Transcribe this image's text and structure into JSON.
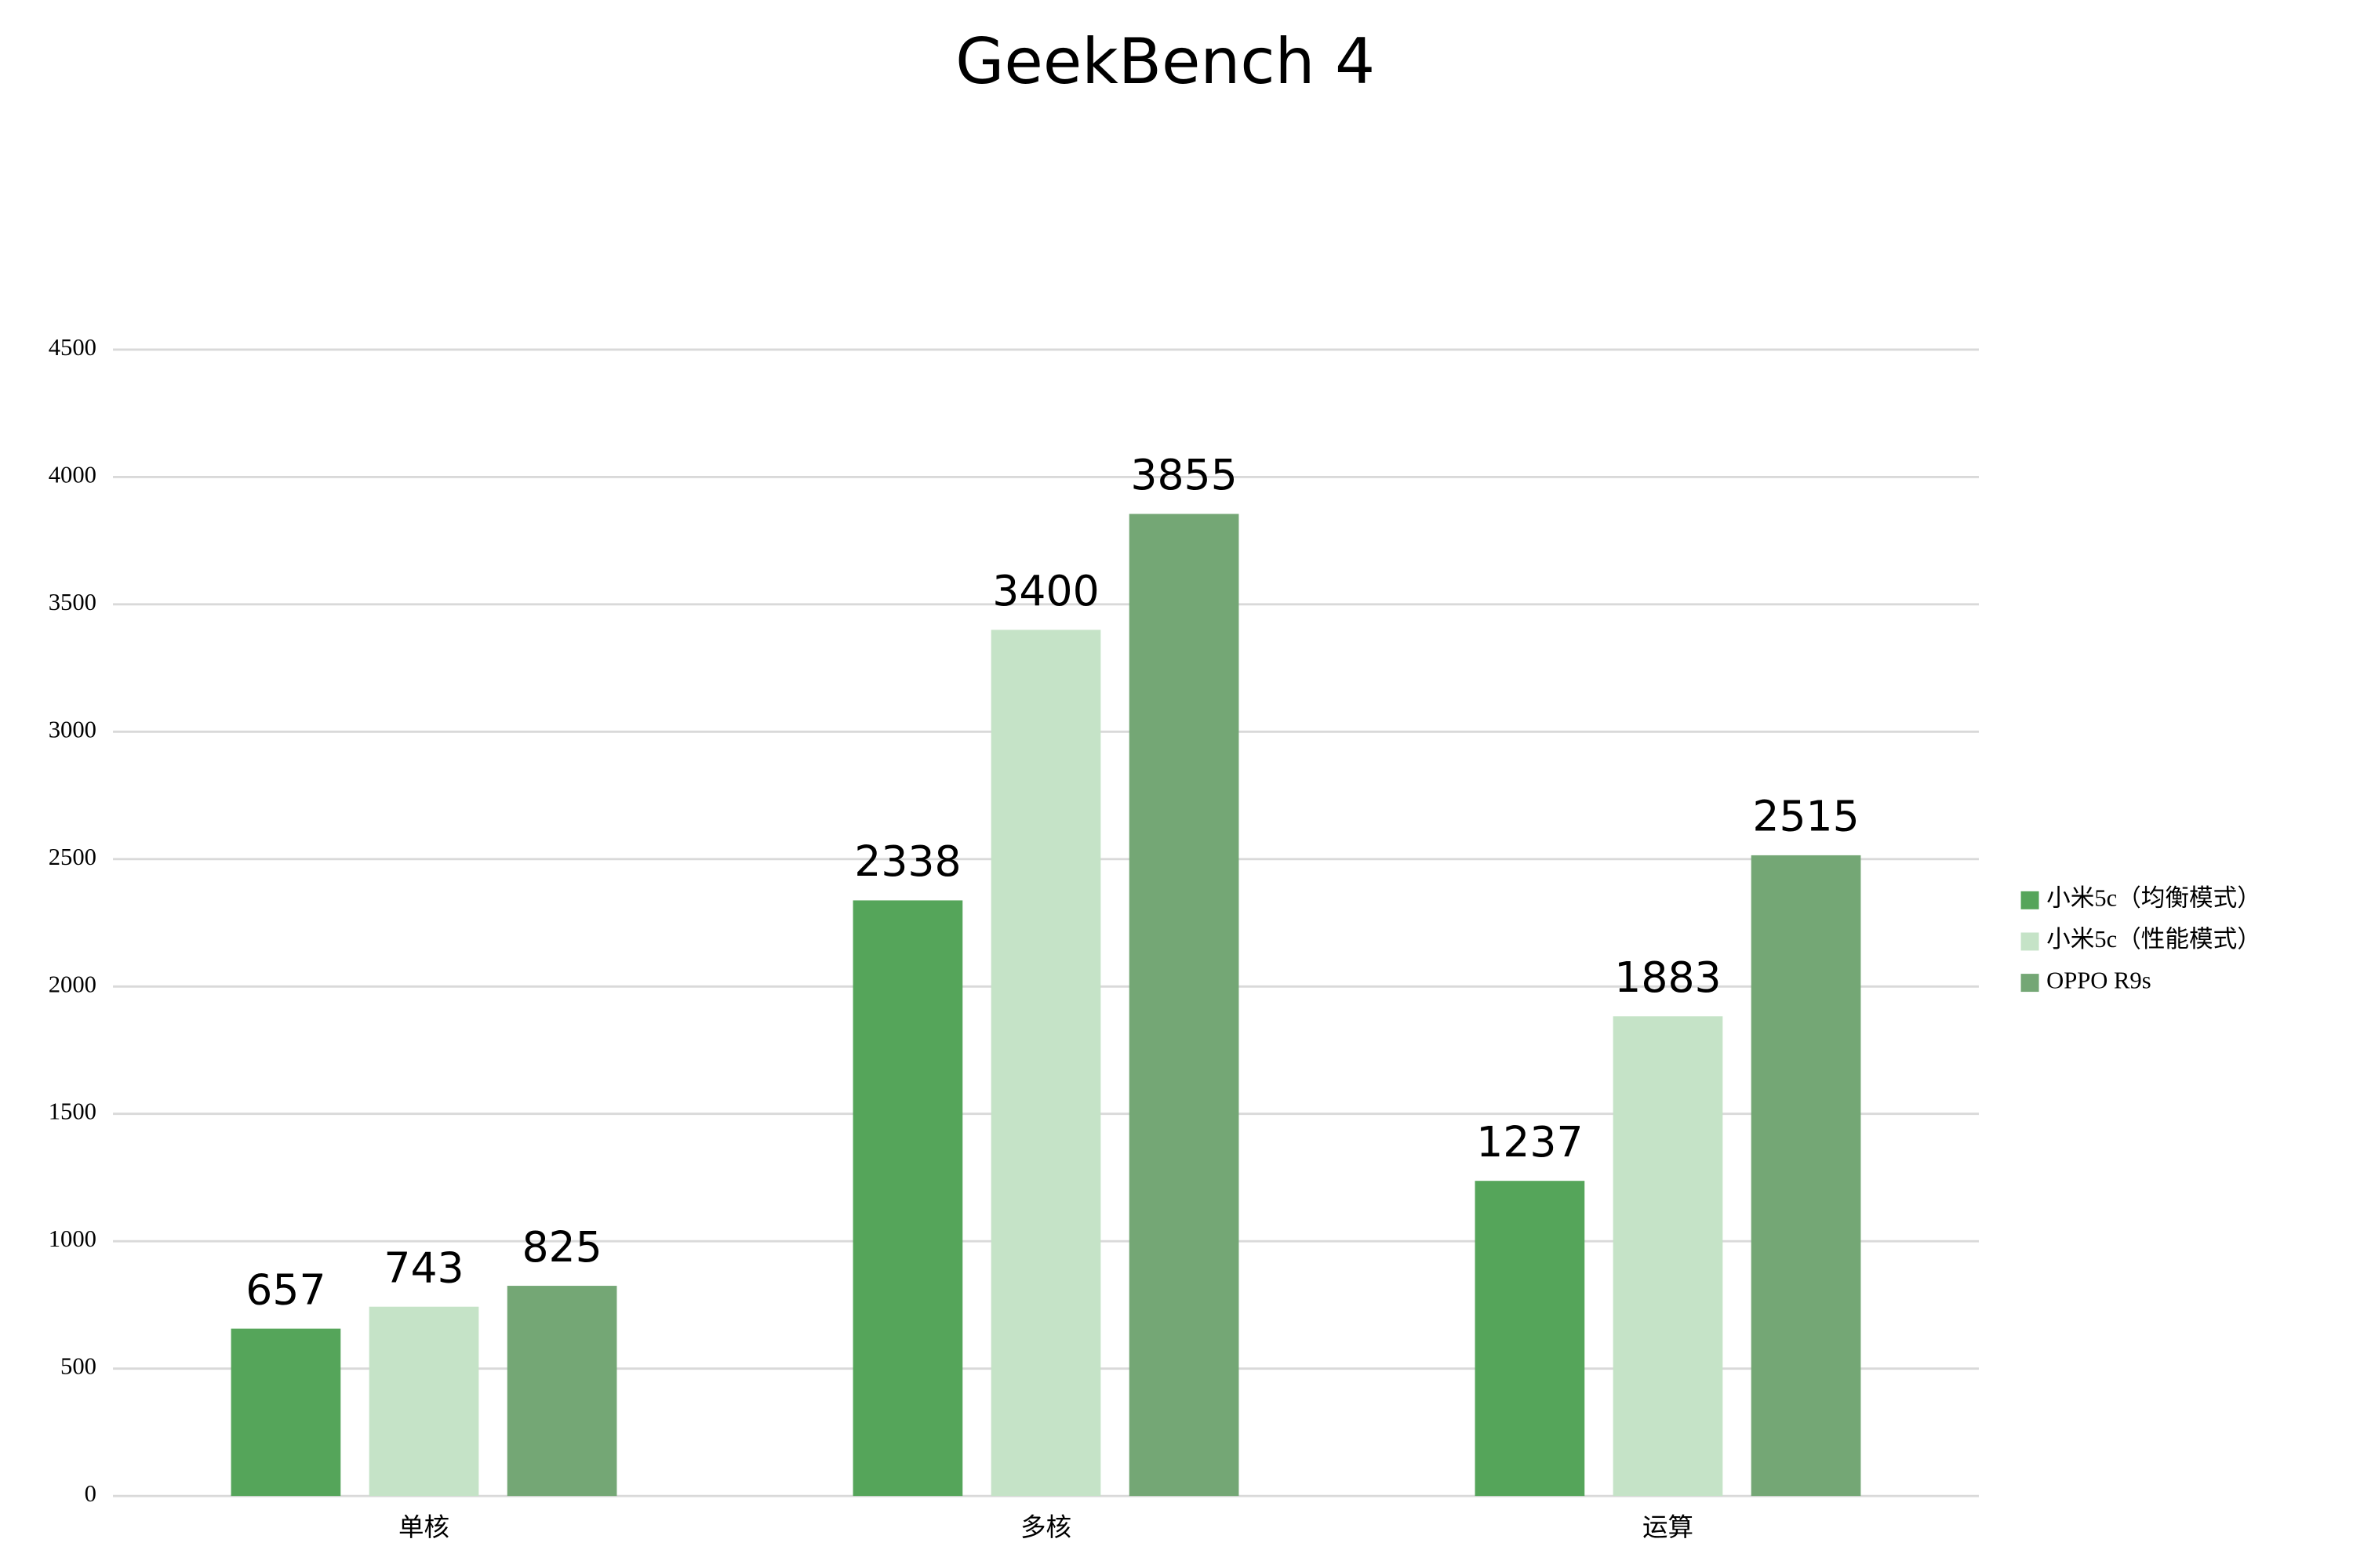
{
  "chart_data": {
    "type": "bar",
    "title": "GeekBench 4",
    "categories": [
      "单核",
      "多核",
      "运算"
    ],
    "series": [
      {
        "name": "小米5c（均衡模式）",
        "color": "#55a55a",
        "values": [
          657,
          2338,
          1237
        ]
      },
      {
        "name": "小米5c（性能模式）",
        "color": "#c5e3c7",
        "values": [
          743,
          3400,
          1883
        ]
      },
      {
        "name": "OPPO R9s",
        "color": "#74a775",
        "values": [
          825,
          3855,
          2515
        ]
      }
    ],
    "ylim": [
      0,
      4500
    ],
    "yticks": [
      0,
      500,
      1000,
      1500,
      2000,
      2500,
      3000,
      3500,
      4000,
      4500
    ],
    "grid": true,
    "legend": "right"
  }
}
